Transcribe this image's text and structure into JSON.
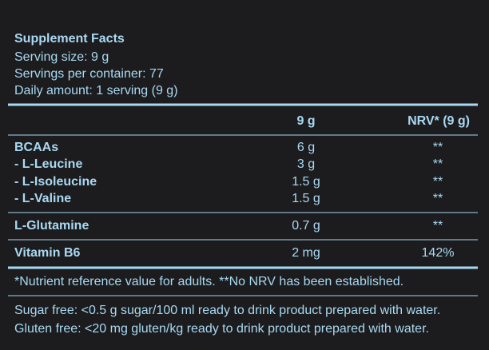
{
  "header": {
    "title": "Supplement Facts",
    "serving_size": "Serving size: 9 g",
    "servings_per_container": "Servings per container: 77",
    "daily_amount": "Daily amount: 1 serving (9 g)"
  },
  "table": {
    "columns": [
      "9 g",
      "NRV* (9 g)"
    ],
    "rows": [
      [
        "BCAAs",
        "6 g",
        "**"
      ],
      [
        "- L-Leucine",
        "3 g",
        "**"
      ],
      [
        "- L-Isoleucine",
        "1.5 g",
        "**"
      ],
      [
        "- L-Valine",
        "1.5 g",
        "**"
      ],
      [
        "L-Glutamine",
        "0.7 g",
        "**"
      ],
      [
        "Vitamin B6",
        "2 mg",
        "142%"
      ]
    ]
  },
  "footnote": "*Nutrient reference value for adults. **No NRV has been established.",
  "notes": [
    "Sugar free: <0.5 g sugar/100 ml ready to drink product prepared with water.",
    "Gluten free: <20 mg gluten/kg ready to drink product prepared with water."
  ]
}
